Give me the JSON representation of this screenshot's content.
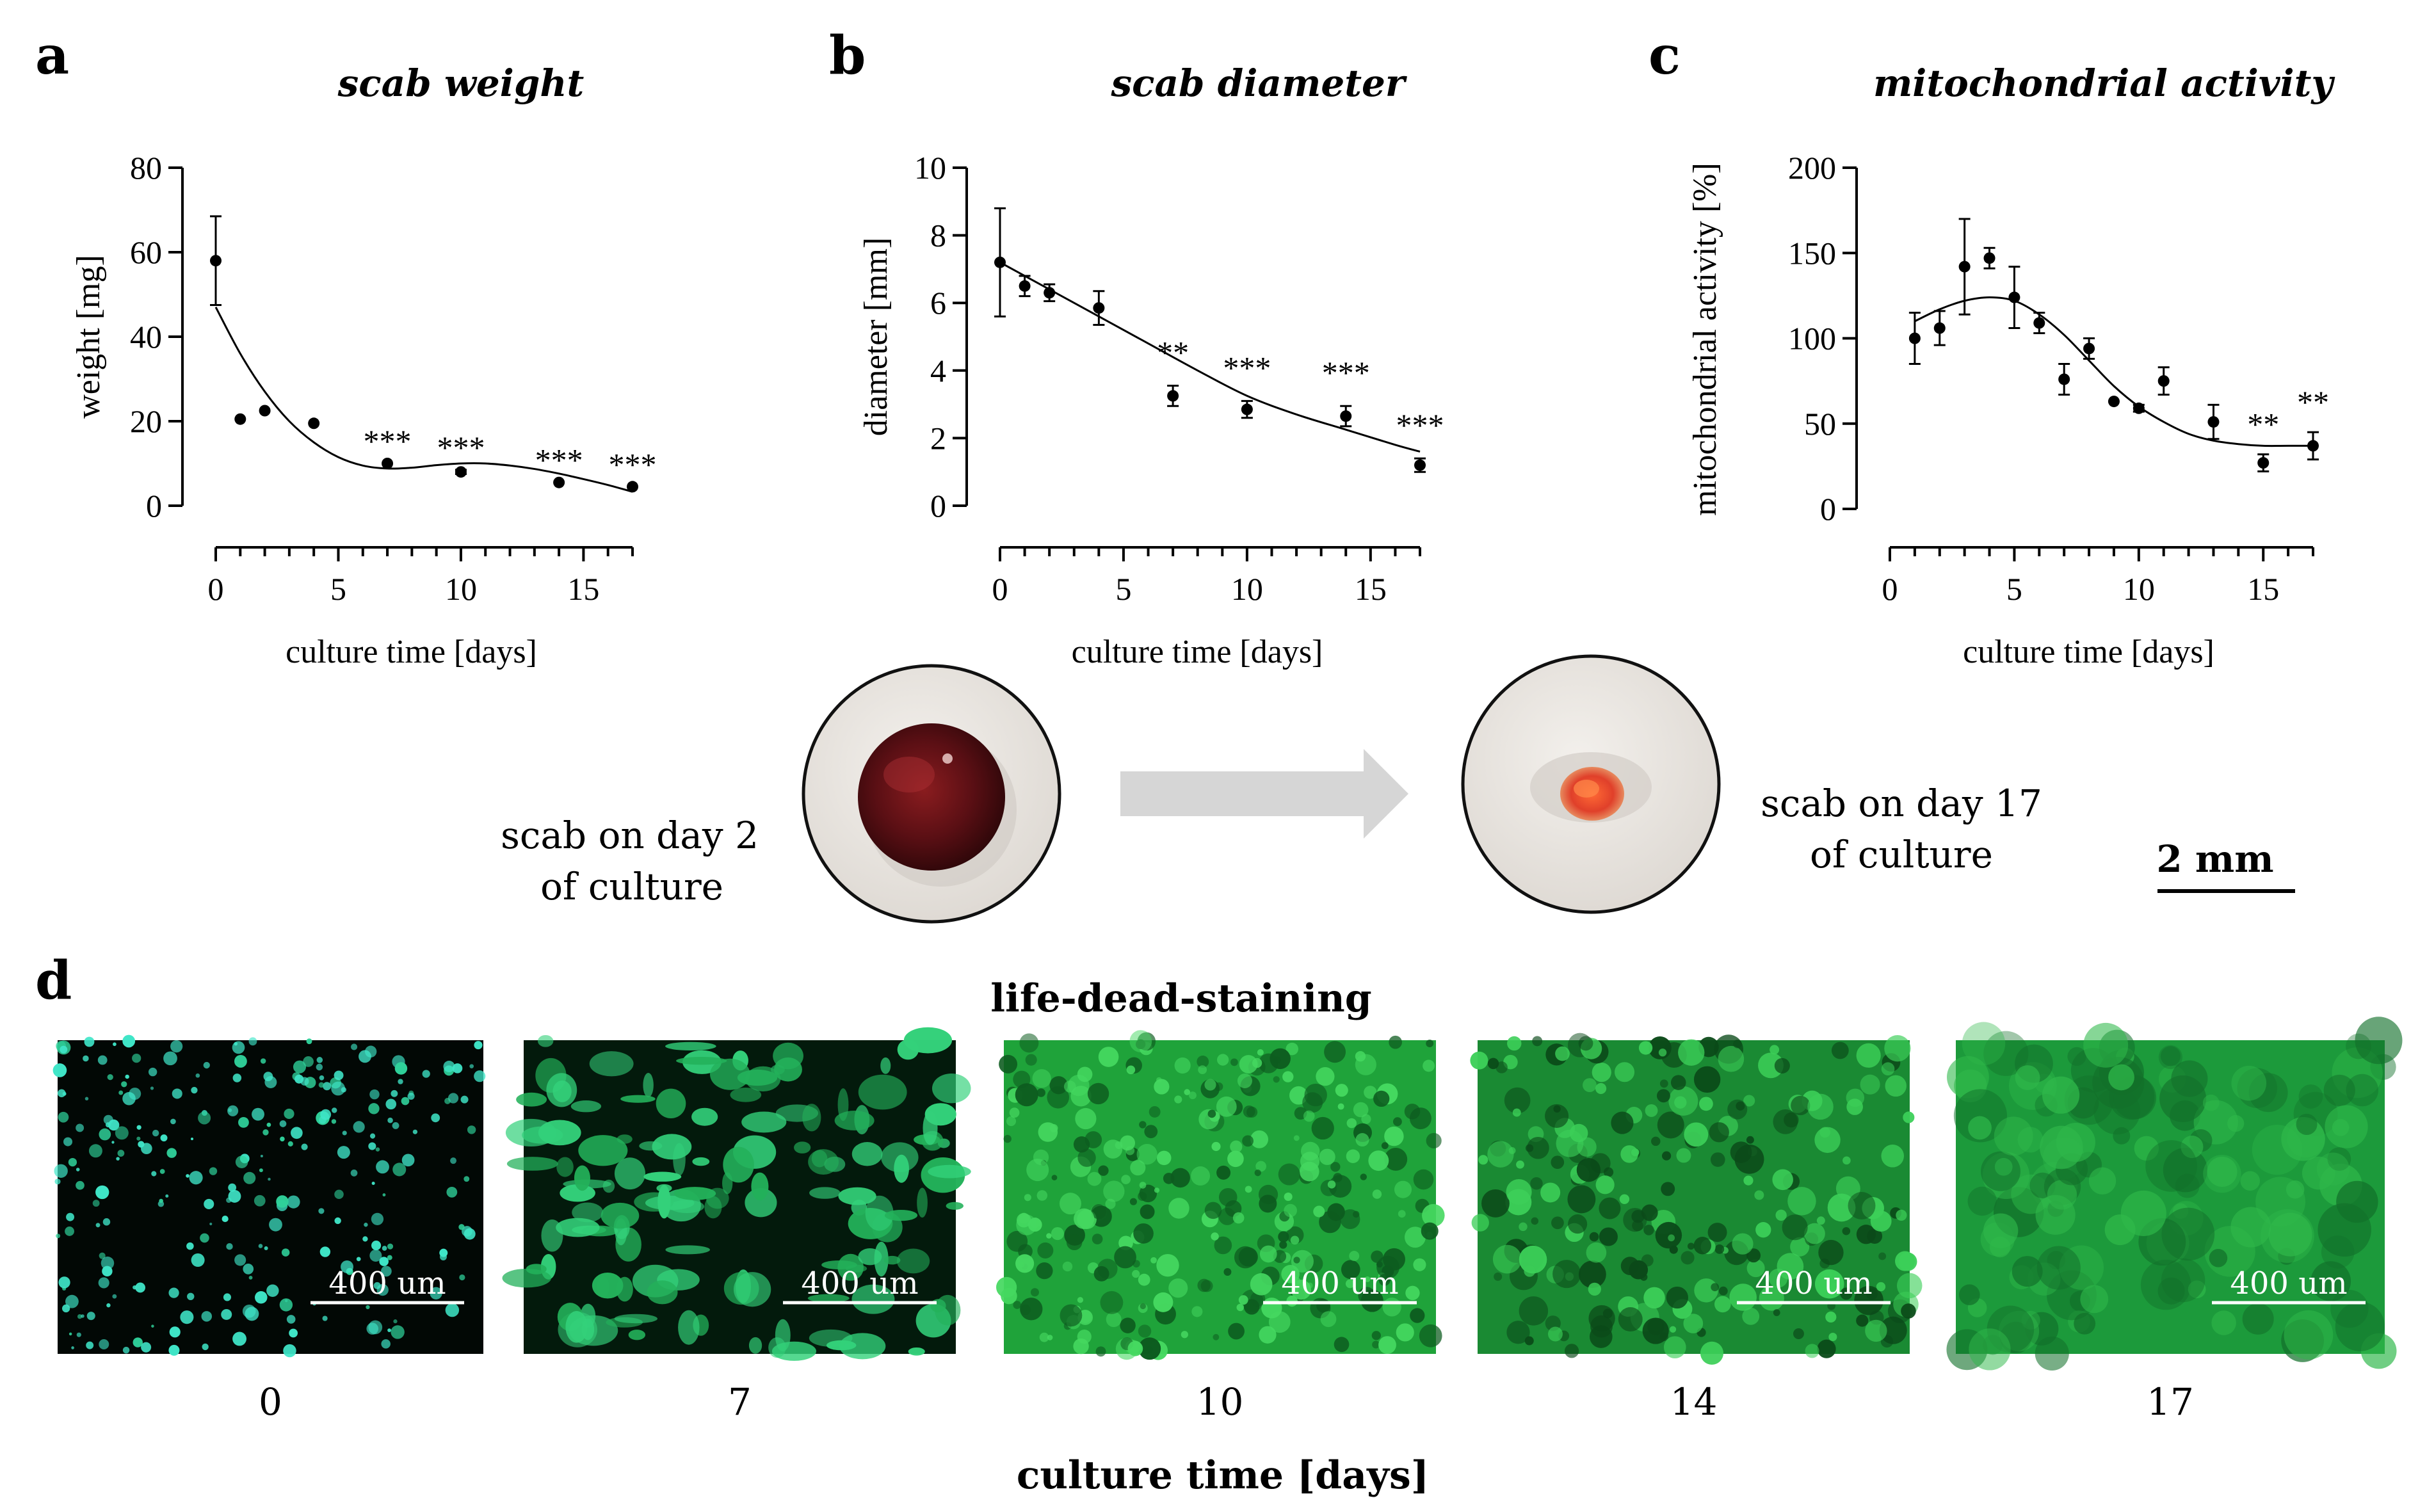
{
  "panels": {
    "a": "a",
    "b": "b",
    "c": "c",
    "d": "d"
  },
  "chart_data": [
    {
      "id": "a",
      "type": "scatter",
      "title": "scab weight",
      "xlabel": "culture time [days]",
      "ylabel": "weight [mg]",
      "xlim": [
        0,
        17
      ],
      "ylim": [
        0,
        80
      ],
      "xticks": [
        "0",
        "5",
        "10",
        "15"
      ],
      "yticks": [
        "0",
        "20",
        "40",
        "60",
        "80"
      ],
      "series": [
        {
          "points": [
            {
              "x": 0,
              "y": 58,
              "err": 10.5
            },
            {
              "x": 1,
              "y": 20.5,
              "err": 0
            },
            {
              "x": 2,
              "y": 22.5,
              "err": 0
            },
            {
              "x": 4,
              "y": 19.5,
              "err": 0
            },
            {
              "x": 7,
              "y": 10,
              "err": 0,
              "sig": "***"
            },
            {
              "x": 10,
              "y": 8,
              "err": 0.5,
              "sig": "***"
            },
            {
              "x": 14,
              "y": 5.5,
              "err": 0,
              "sig": "***"
            },
            {
              "x": 17,
              "y": 4.5,
              "err": 0,
              "sig": "***"
            }
          ],
          "fit": [
            [
              0,
              47
            ],
            [
              1,
              36
            ],
            [
              2,
              27
            ],
            [
              3,
              20
            ],
            [
              4,
              15
            ],
            [
              5,
              11.5
            ],
            [
              6,
              9.5
            ],
            [
              7,
              8.8
            ],
            [
              8,
              9
            ],
            [
              9,
              9.6
            ],
            [
              10,
              10
            ],
            [
              11,
              10
            ],
            [
              12,
              9.5
            ],
            [
              13,
              8.7
            ],
            [
              14,
              7.6
            ],
            [
              15,
              6.3
            ],
            [
              16,
              4.9
            ],
            [
              17,
              3.3
            ]
          ]
        }
      ]
    },
    {
      "id": "b",
      "type": "scatter",
      "title": "scab diameter",
      "xlabel": "culture time [days]",
      "ylabel": "diameter [mm]",
      "xlim": [
        0,
        17
      ],
      "ylim": [
        0,
        10
      ],
      "xticks": [
        "0",
        "5",
        "10",
        "15"
      ],
      "yticks": [
        "0",
        "2",
        "4",
        "6",
        "8",
        "10"
      ],
      "series": [
        {
          "points": [
            {
              "x": 0,
              "y": 7.2,
              "err": 1.6
            },
            {
              "x": 1,
              "y": 6.5,
              "err": 0.3
            },
            {
              "x": 2,
              "y": 6.3,
              "err": 0.25
            },
            {
              "x": 4,
              "y": 5.85,
              "err": 0.5
            },
            {
              "x": 7,
              "y": 3.25,
              "err": 0.3,
              "sig": "**"
            },
            {
              "x": 10,
              "y": 2.85,
              "err": 0.25,
              "sig": "***"
            },
            {
              "x": 14,
              "y": 2.65,
              "err": 0.3,
              "sig": "***"
            },
            {
              "x": 17,
              "y": 1.2,
              "err": 0.2,
              "sig": "***"
            }
          ],
          "fit": [
            [
              0,
              7.2
            ],
            [
              2,
              6.4
            ],
            [
              4,
              5.6
            ],
            [
              6,
              4.8
            ],
            [
              8,
              4.0
            ],
            [
              10,
              3.25
            ],
            [
              12,
              2.7
            ],
            [
              14,
              2.25
            ],
            [
              16,
              1.8
            ],
            [
              17,
              1.6
            ]
          ]
        }
      ]
    },
    {
      "id": "c",
      "type": "scatter",
      "title": "mitochondrial activity",
      "xlabel": "culture time [days]",
      "ylabel": "mitochondrial activity [%]",
      "xlim": [
        0,
        17
      ],
      "ylim": [
        0,
        200
      ],
      "xticks": [
        "0",
        "5",
        "10",
        "15"
      ],
      "yticks": [
        "0",
        "50",
        "100",
        "150",
        "200"
      ],
      "series": [
        {
          "points": [
            {
              "x": 1,
              "y": 100,
              "err": 15
            },
            {
              "x": 2,
              "y": 106,
              "err": 10
            },
            {
              "x": 3,
              "y": 142,
              "err": 28
            },
            {
              "x": 4,
              "y": 147,
              "err": 6
            },
            {
              "x": 5,
              "y": 124,
              "err": 18
            },
            {
              "x": 6,
              "y": 109,
              "err": 6
            },
            {
              "x": 7,
              "y": 76,
              "err": 9
            },
            {
              "x": 8,
              "y": 94,
              "err": 6
            },
            {
              "x": 9,
              "y": 63,
              "err": 0
            },
            {
              "x": 10,
              "y": 59,
              "err": 2
            },
            {
              "x": 11,
              "y": 75,
              "err": 8
            },
            {
              "x": 13,
              "y": 51,
              "err": 10
            },
            {
              "x": 15,
              "y": 27,
              "err": 5,
              "sig": "**"
            },
            {
              "x": 17,
              "y": 37,
              "err": 8,
              "sig": "**"
            }
          ],
          "fit": [
            [
              1,
              110
            ],
            [
              2,
              117
            ],
            [
              3,
              122
            ],
            [
              4,
              124
            ],
            [
              5,
              122
            ],
            [
              6,
              114
            ],
            [
              7,
              102
            ],
            [
              8,
              87
            ],
            [
              9,
              72
            ],
            [
              10,
              60
            ],
            [
              11,
              51
            ],
            [
              12,
              44
            ],
            [
              13,
              40
            ],
            [
              14,
              38
            ],
            [
              15,
              37
            ],
            [
              16,
              37
            ],
            [
              17,
              37
            ]
          ]
        }
      ]
    }
  ],
  "photos": {
    "left_caption_line1": "scab on day 2",
    "left_caption_line2": "of culture",
    "right_caption_line1": "scab on day 17",
    "right_caption_line2": "of culture",
    "scale_bar": "2 mm",
    "arrow_color": "#d6d6d6"
  },
  "staining": {
    "title": "life-dead-staining",
    "scale_label": "400 um",
    "images": [
      {
        "day": "0"
      },
      {
        "day": "7"
      },
      {
        "day": "10"
      },
      {
        "day": "14"
      },
      {
        "day": "17"
      }
    ],
    "xlabel": "culture time [days]"
  }
}
